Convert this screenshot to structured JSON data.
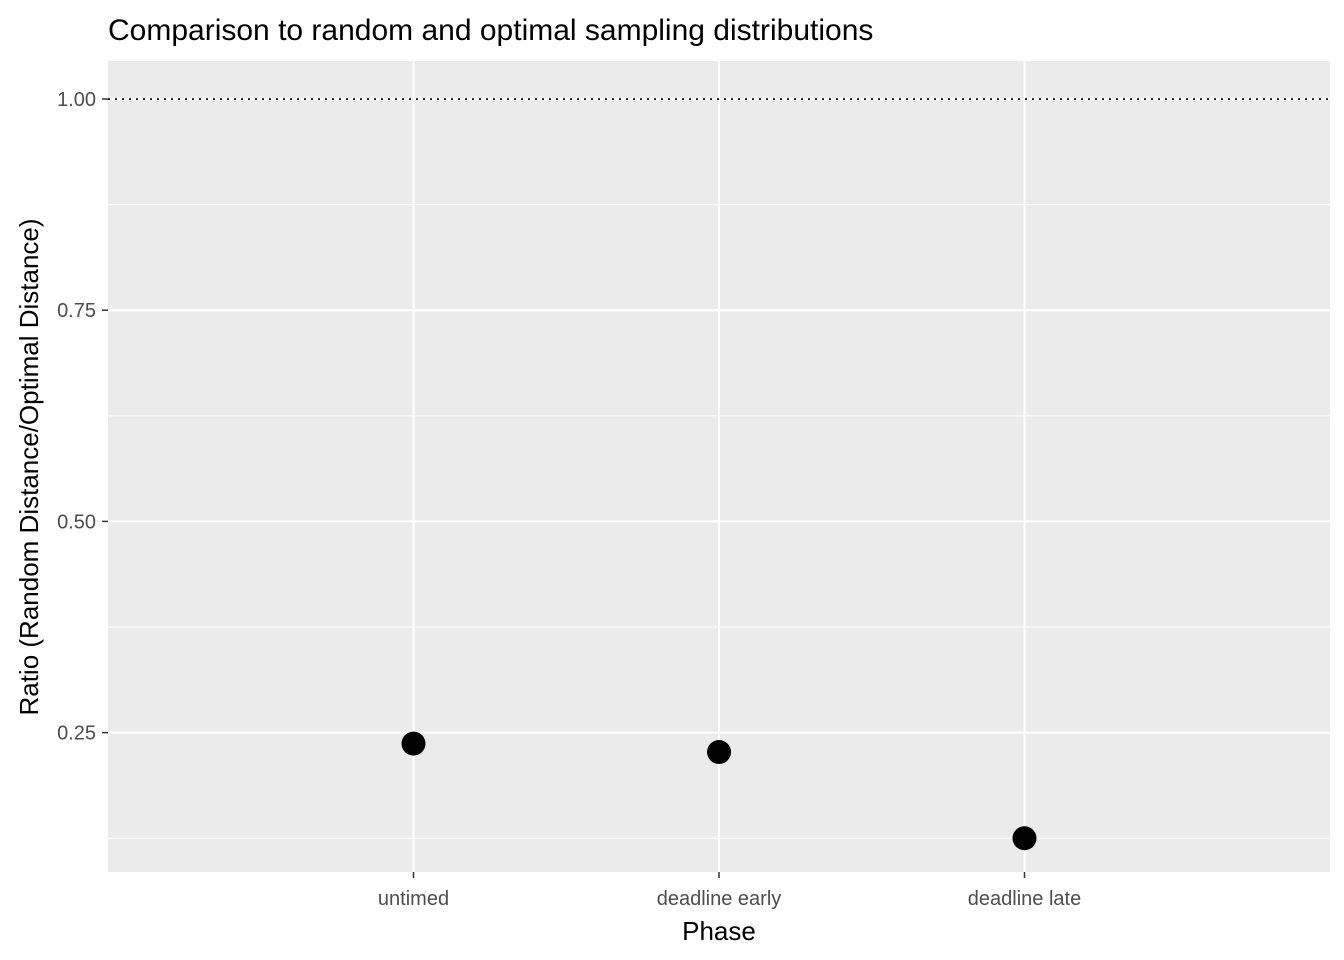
{
  "chart_data": {
    "type": "scatter",
    "title": "Comparison to random and optimal sampling distributions",
    "xlabel": "Phase",
    "ylabel": "Ratio (Random Distance/Optimal Distance)",
    "categories": [
      "untimed",
      "deadline early",
      "deadline late"
    ],
    "values": [
      0.237,
      0.227,
      0.125
    ],
    "ylim": [
      0.085,
      1.045
    ],
    "yticks": [
      0.25,
      0.5,
      0.75,
      1.0
    ],
    "ytick_labels": [
      "0.25",
      "0.50",
      "0.75",
      "1.00"
    ],
    "reference_line": {
      "y": 1.0,
      "style": "dotted"
    },
    "grid": true,
    "background_color": "#ebebeb",
    "point_color": "#000000"
  }
}
